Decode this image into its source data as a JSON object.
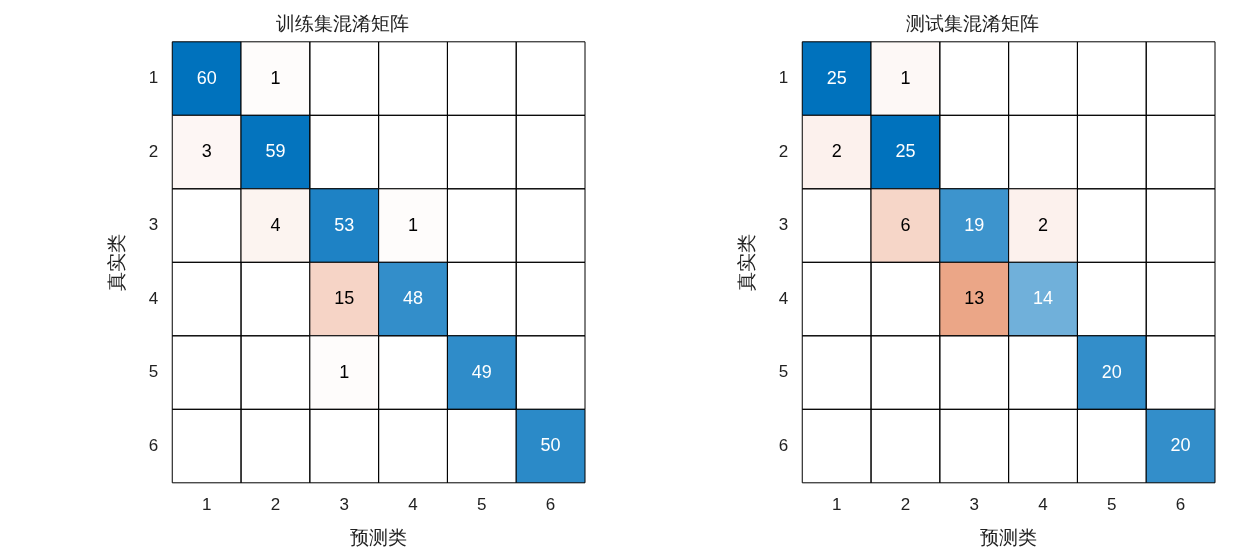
{
  "chart_data": [
    {
      "type": "heatmap",
      "data_labels": true,
      "title": "训练集混淆矩阵",
      "xlabel": "预测类",
      "ylabel": "真实类",
      "categories": [
        "1",
        "2",
        "3",
        "4",
        "5",
        "6"
      ],
      "y_categories": [
        "1",
        "2",
        "3",
        "4",
        "5",
        "6"
      ],
      "cells": [
        [
          60,
          1,
          null,
          null,
          null,
          null
        ],
        [
          3,
          59,
          null,
          null,
          null,
          null
        ],
        [
          null,
          4,
          53,
          1,
          null,
          null
        ],
        [
          null,
          null,
          15,
          48,
          null,
          null
        ],
        [
          null,
          null,
          1,
          null,
          49,
          null
        ],
        [
          null,
          null,
          null,
          null,
          null,
          50
        ]
      ]
    },
    {
      "type": "heatmap",
      "data_labels": true,
      "title": "测试集混淆矩阵",
      "xlabel": "预测类",
      "ylabel": "真实类",
      "categories": [
        "1",
        "2",
        "3",
        "4",
        "5",
        "6"
      ],
      "y_categories": [
        "1",
        "2",
        "3",
        "4",
        "5",
        "6"
      ],
      "cells": [
        [
          25,
          1,
          null,
          null,
          null,
          null
        ],
        [
          2,
          25,
          null,
          null,
          null,
          null
        ],
        [
          null,
          6,
          19,
          2,
          null,
          null
        ],
        [
          null,
          null,
          13,
          14,
          null,
          null
        ],
        [
          null,
          null,
          null,
          null,
          20,
          null
        ],
        [
          null,
          null,
          null,
          null,
          null,
          20
        ]
      ]
    }
  ]
}
